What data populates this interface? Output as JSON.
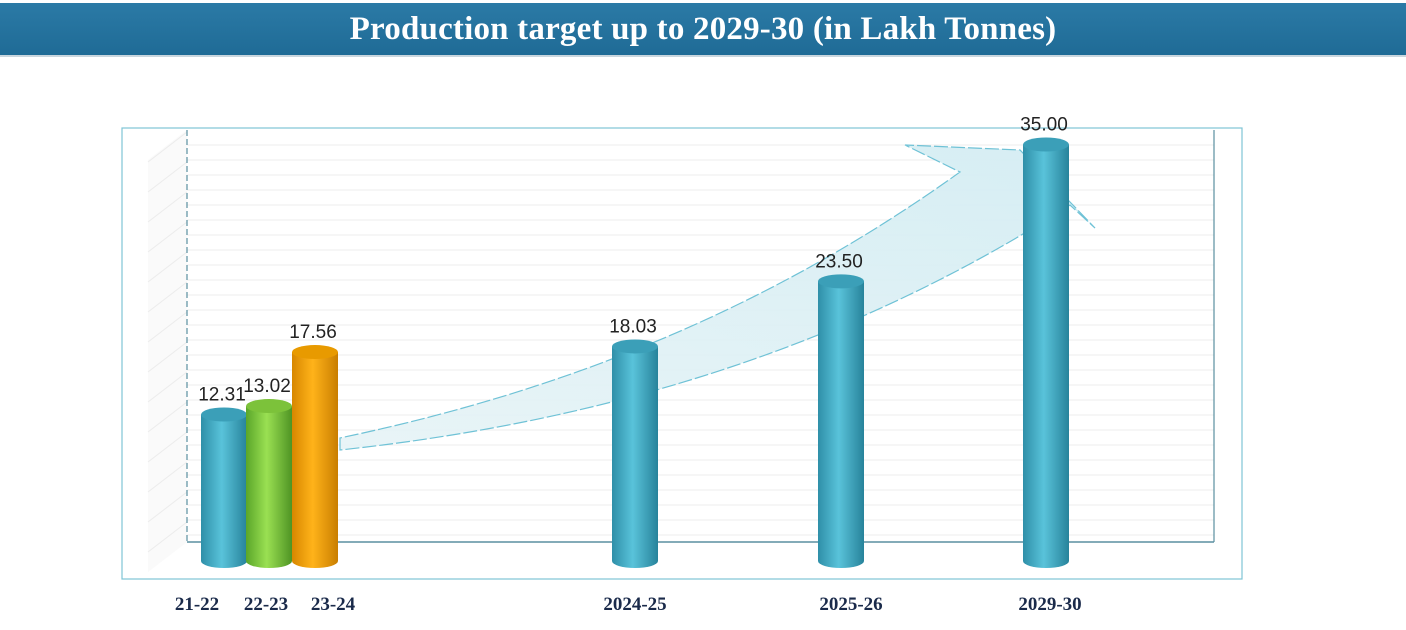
{
  "chart_data": {
    "type": "bar",
    "title": "Production target up to 2029-30 (in Lakh Tonnes)",
    "xlabel": "",
    "ylabel": "",
    "ylim": [
      0,
      40
    ],
    "categories": [
      "21-22",
      "22-23",
      "23-24",
      "2024-25",
      "2025-26",
      "2029-30"
    ],
    "values": [
      12.31,
      13.02,
      17.56,
      18.03,
      23.5,
      35.0
    ],
    "value_labels": [
      "12.31",
      "13.02",
      "17.56",
      "18.03",
      "23.50",
      "35.00"
    ],
    "grid": true,
    "legend": "none",
    "annotation": "upward trend arrow",
    "colors": {
      "21-22": "#4ab3cc",
      "22-23": "#86d13f",
      "23-24": "#f5a300",
      "2024-25": "#4ab3cc",
      "2025-26": "#4ab3cc",
      "2029-30": "#4ab3cc"
    }
  }
}
